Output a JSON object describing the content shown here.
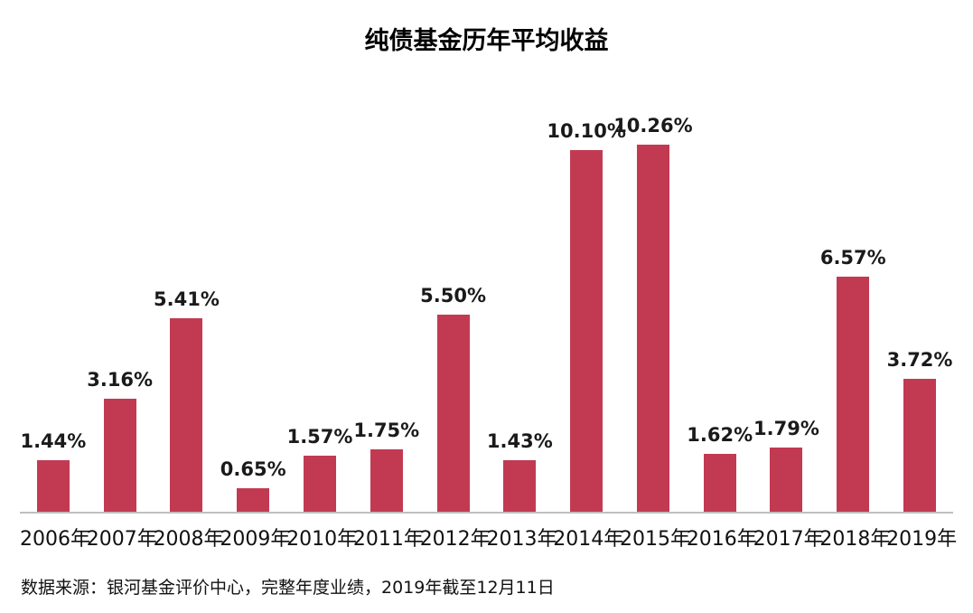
{
  "page": {
    "background": "#ffffff"
  },
  "chart_data": {
    "type": "bar",
    "title": "纯债基金历年平均收益",
    "categories": [
      "2006年",
      "2007年",
      "2008年",
      "2009年",
      "2010年",
      "2011年",
      "2012年",
      "2013年",
      "2014年",
      "2015年",
      "2016年",
      "2017年",
      "2018年",
      "2019年"
    ],
    "values": [
      1.44,
      3.16,
      5.41,
      0.65,
      1.57,
      1.75,
      5.5,
      1.43,
      10.1,
      10.26,
      1.62,
      1.79,
      6.57,
      3.72
    ],
    "value_labels": [
      "1.44%",
      "3.16%",
      "5.41%",
      "0.65%",
      "1.57%",
      "1.75%",
      "5.50%",
      "1.43%",
      "10.10%",
      "10.26%",
      "1.62%",
      "1.79%",
      "6.57%",
      "3.72%"
    ],
    "ylabel": "",
    "xlabel": "",
    "ylim": [
      0,
      10.26
    ],
    "grid": false,
    "legend": "none",
    "bar_color": "#c23a52",
    "axis_line_color": "#bfbfbf",
    "source_note": "数据来源：银河基金评价中心，完整年度业绩，2019年截至12月11日"
  }
}
